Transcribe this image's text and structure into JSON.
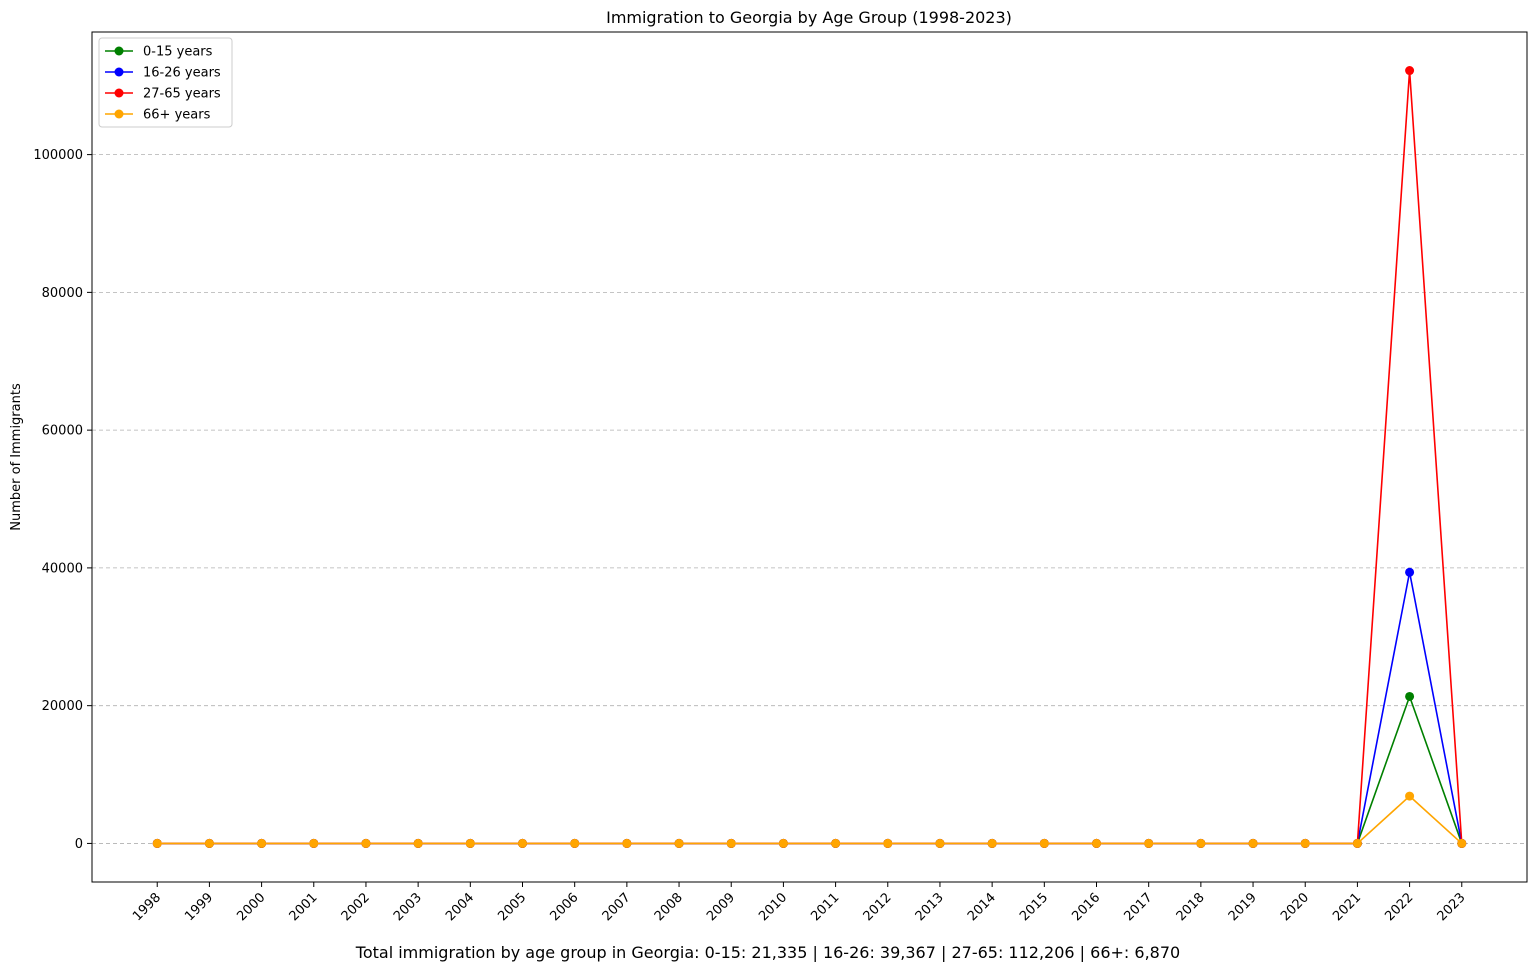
{
  "chart_data": {
    "type": "line",
    "title": "Immigration to Georgia by Age Group (1998-2023)",
    "xlabel": "",
    "ylabel": "Number of Immigrants",
    "x": [
      1998,
      1999,
      2000,
      2001,
      2002,
      2003,
      2004,
      2005,
      2006,
      2007,
      2008,
      2009,
      2010,
      2011,
      2012,
      2013,
      2014,
      2015,
      2016,
      2017,
      2018,
      2019,
      2020,
      2021,
      2022,
      2023
    ],
    "x_tick_labels": [
      "1998",
      "1999",
      "2000",
      "2001",
      "2002",
      "2003",
      "2004",
      "2005",
      "2006",
      "2007",
      "2008",
      "2009",
      "2010",
      "2011",
      "2012",
      "2013",
      "2014",
      "2015",
      "2016",
      "2017",
      "2018",
      "2019",
      "2020",
      "2021",
      "2022",
      "2023"
    ],
    "ylim": [
      -5600,
      117800
    ],
    "y_ticks": [
      0,
      20000,
      40000,
      60000,
      80000,
      100000
    ],
    "y_tick_labels": [
      "0",
      "20000",
      "40000",
      "60000",
      "80000",
      "100000"
    ],
    "grid": "y-dashed",
    "legend_position": "top-left",
    "series": [
      {
        "name": "0-15 years",
        "color": "#008000",
        "values": [
          0,
          0,
          0,
          0,
          0,
          0,
          0,
          0,
          0,
          0,
          0,
          0,
          0,
          0,
          0,
          0,
          0,
          0,
          0,
          0,
          0,
          0,
          0,
          0,
          21335,
          0
        ]
      },
      {
        "name": "16-26 years",
        "color": "#0000ff",
        "values": [
          0,
          0,
          0,
          0,
          0,
          0,
          0,
          0,
          0,
          0,
          0,
          0,
          0,
          0,
          0,
          0,
          0,
          0,
          0,
          0,
          0,
          0,
          0,
          0,
          39367,
          0
        ]
      },
      {
        "name": "27-65 years",
        "color": "#ff0000",
        "values": [
          0,
          0,
          0,
          0,
          0,
          0,
          0,
          0,
          0,
          0,
          0,
          0,
          0,
          0,
          0,
          0,
          0,
          0,
          0,
          0,
          0,
          0,
          0,
          0,
          112206,
          0
        ]
      },
      {
        "name": "66+ years",
        "color": "#ffa500",
        "values": [
          0,
          0,
          0,
          0,
          0,
          0,
          0,
          0,
          0,
          0,
          0,
          0,
          0,
          0,
          0,
          0,
          0,
          0,
          0,
          0,
          0,
          0,
          0,
          0,
          6870,
          0
        ]
      }
    ],
    "footer": "Total immigration by age group in Georgia: 0-15: 21,335 | 16-26: 39,367 | 27-65: 112,206 | 66+: 6,870"
  }
}
